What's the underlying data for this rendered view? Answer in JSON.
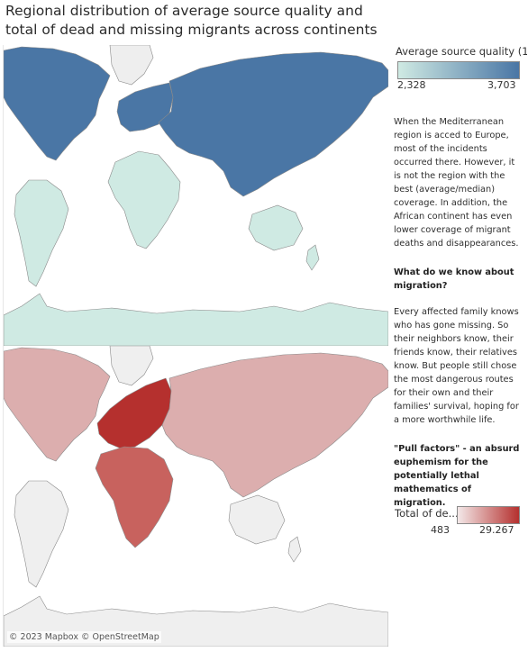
{
  "title": "Regional distribution of average source quality and total of dead and missing migrants across continents",
  "attribution": "© 2023 Mapbox © OpenStreetMap",
  "legend_quality": {
    "title": "Average source quality (1...",
    "min_label": "2,328",
    "max_label": "3,703",
    "min_color": "#cfeae3",
    "max_color": "#4a76a5"
  },
  "legend_dead": {
    "title": "Total of de...",
    "min_label": "483",
    "max_label": "29.267",
    "min_color": "#f3e8e8",
    "max_color": "#b5302e"
  },
  "paragraphs": {
    "p1": "When the Mediterranean region is acced to Europe, most of the incidents occurred there. However, it is not the region with the best (average/median) coverage. In addition, the African continent has even lower coverage of migrant deaths and disappearances.",
    "h1": "What do we know about migration?",
    "p2": "Every affected family knows who has gone missing. So their neighbors know, their friends know, their relatives know. But people still chose the most dangerous routes for their own and their families' survival, hoping for a more worthwhile life.",
    "h2": "\"Pull factors\" - an absurd euphemism for the potentially lethal mathematics of migration."
  },
  "map_quality": {
    "colors": {
      "north_america": "#4a76a5",
      "europe": "#4a76a5",
      "asia": "#4a76a5",
      "south_america": "#cfeae3",
      "africa": "#cfeae3",
      "oceania": "#cfeae3",
      "antarctica": "#cfeae3",
      "greenland": "#eeeeee"
    }
  },
  "map_dead": {
    "colors": {
      "north_america": "#dcaeae",
      "europe": "#b5302e",
      "asia": "#dcaeae",
      "south_america": "#efefef",
      "africa": "#c8625e",
      "oceania": "#efefef",
      "antarctica": "#efefef",
      "greenland": "#efefef"
    }
  }
}
